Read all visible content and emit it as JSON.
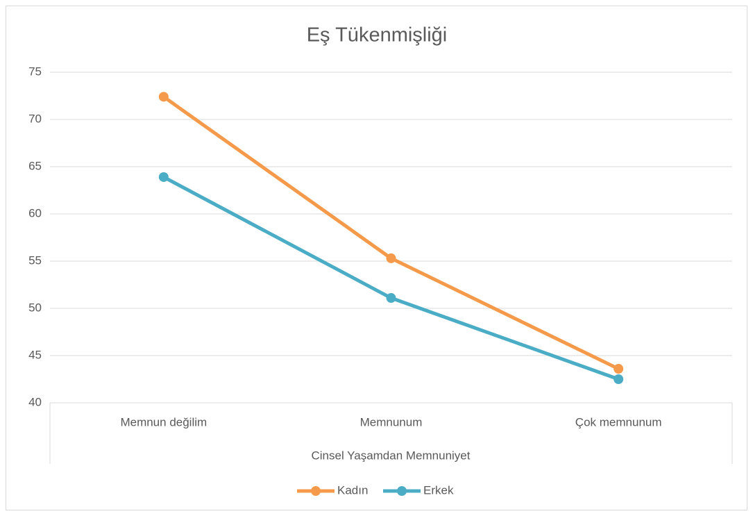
{
  "chart_data": {
    "type": "line",
    "title": "Eş Tükenmişliği",
    "x_label": "Cinsel Yaşamdan Memnuniyet",
    "categories": [
      "Memnun değilim",
      "Memnunum",
      "Çok memnunum"
    ],
    "series": [
      {
        "name": "Kadın",
        "color": "#f59a4a",
        "values": [
          72.4,
          55.3,
          43.6
        ]
      },
      {
        "name": "Erkek",
        "color": "#4bacc6",
        "values": [
          63.9,
          51.1,
          42.5
        ]
      }
    ],
    "ylim": [
      40,
      75
    ],
    "yticks": [
      40,
      45,
      50,
      55,
      60,
      65,
      70,
      75
    ],
    "grid": true,
    "legend": "bottom"
  }
}
